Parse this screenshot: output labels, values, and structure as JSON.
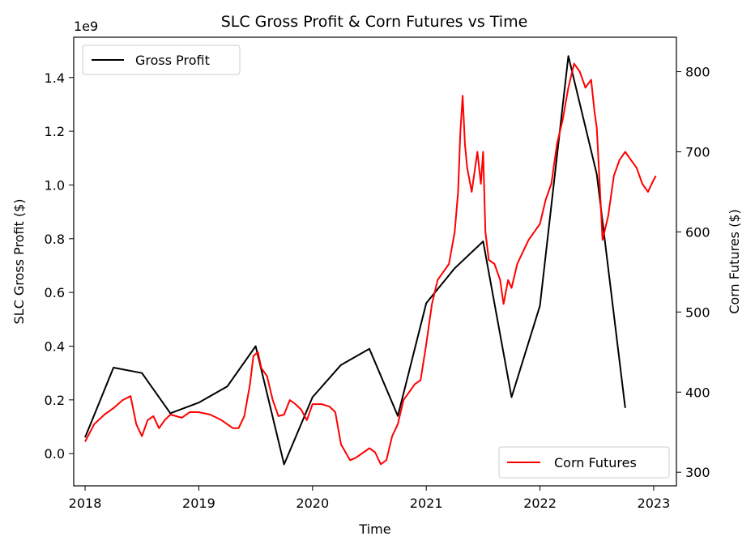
{
  "chart_data": {
    "type": "line",
    "title": "SLC Gross Profit & Corn Futures vs Time",
    "xlabel": "Time",
    "ylabel_left": "SLC Gross Profit ($)",
    "ylabel_right": "Corn Futures ($)",
    "left_axis_scale_label": "1e9",
    "xlim": [
      2017.9,
      2023.2
    ],
    "ylim_left": [
      -0.12,
      1.55
    ],
    "ylim_right": [
      283,
      843
    ],
    "x_ticks": [
      2018,
      2019,
      2020,
      2021,
      2022,
      2023
    ],
    "x_tick_labels": [
      "2018",
      "2019",
      "2020",
      "2021",
      "2022",
      "2023"
    ],
    "y_left_ticks": [
      0.0,
      0.2,
      0.4,
      0.6,
      0.8,
      1.0,
      1.2,
      1.4
    ],
    "y_left_tick_labels": [
      "0.0",
      "0.2",
      "0.4",
      "0.6",
      "0.8",
      "1.0",
      "1.2",
      "1.4"
    ],
    "y_right_ticks": [
      300,
      400,
      500,
      600,
      700,
      800
    ],
    "y_right_tick_labels": [
      "300",
      "400",
      "500",
      "600",
      "700",
      "800"
    ],
    "legend_left": {
      "label": "Gross Profit",
      "placement": "upper-left"
    },
    "legend_right": {
      "label": "Corn Futures",
      "placement": "lower-right"
    },
    "series": [
      {
        "name": "Gross Profit",
        "axis": "left",
        "color": "#000000",
        "points": [
          [
            2018.0,
            0.06
          ],
          [
            2018.25,
            0.32
          ],
          [
            2018.5,
            0.3
          ],
          [
            2018.75,
            0.15
          ],
          [
            2019.0,
            0.19
          ],
          [
            2019.25,
            0.25
          ],
          [
            2019.5,
            0.4
          ],
          [
            2019.75,
            -0.04
          ],
          [
            2020.0,
            0.21
          ],
          [
            2020.25,
            0.33
          ],
          [
            2020.5,
            0.39
          ],
          [
            2020.75,
            0.14
          ],
          [
            2021.0,
            0.56
          ],
          [
            2021.25,
            0.69
          ],
          [
            2021.5,
            0.79
          ],
          [
            2021.75,
            0.21
          ],
          [
            2022.0,
            0.55
          ],
          [
            2022.25,
            1.48
          ],
          [
            2022.5,
            1.04
          ],
          [
            2022.75,
            0.17
          ]
        ]
      },
      {
        "name": "Corn Futures",
        "axis": "right",
        "color": "#ff0000",
        "points": [
          [
            2018.0,
            338
          ],
          [
            2018.08,
            360
          ],
          [
            2018.17,
            372
          ],
          [
            2018.25,
            380
          ],
          [
            2018.33,
            390
          ],
          [
            2018.4,
            395
          ],
          [
            2018.45,
            360
          ],
          [
            2018.5,
            345
          ],
          [
            2018.55,
            365
          ],
          [
            2018.6,
            370
          ],
          [
            2018.65,
            355
          ],
          [
            2018.7,
            365
          ],
          [
            2018.75,
            372
          ],
          [
            2018.85,
            368
          ],
          [
            2018.92,
            375
          ],
          [
            2019.0,
            375
          ],
          [
            2019.1,
            372
          ],
          [
            2019.2,
            365
          ],
          [
            2019.3,
            355
          ],
          [
            2019.35,
            355
          ],
          [
            2019.4,
            370
          ],
          [
            2019.45,
            410
          ],
          [
            2019.48,
            445
          ],
          [
            2019.52,
            450
          ],
          [
            2019.55,
            430
          ],
          [
            2019.6,
            420
          ],
          [
            2019.65,
            390
          ],
          [
            2019.7,
            370
          ],
          [
            2019.75,
            372
          ],
          [
            2019.8,
            390
          ],
          [
            2019.85,
            385
          ],
          [
            2019.9,
            378
          ],
          [
            2019.95,
            365
          ],
          [
            2020.0,
            385
          ],
          [
            2020.08,
            385
          ],
          [
            2020.15,
            382
          ],
          [
            2020.2,
            375
          ],
          [
            2020.25,
            335
          ],
          [
            2020.33,
            315
          ],
          [
            2020.38,
            318
          ],
          [
            2020.45,
            325
          ],
          [
            2020.5,
            330
          ],
          [
            2020.55,
            325
          ],
          [
            2020.6,
            310
          ],
          [
            2020.65,
            315
          ],
          [
            2020.7,
            345
          ],
          [
            2020.75,
            360
          ],
          [
            2020.8,
            390
          ],
          [
            2020.85,
            400
          ],
          [
            2020.9,
            410
          ],
          [
            2020.95,
            415
          ],
          [
            2021.0,
            460
          ],
          [
            2021.05,
            510
          ],
          [
            2021.1,
            540
          ],
          [
            2021.15,
            550
          ],
          [
            2021.2,
            560
          ],
          [
            2021.25,
            600
          ],
          [
            2021.28,
            650
          ],
          [
            2021.3,
            725
          ],
          [
            2021.32,
            770
          ],
          [
            2021.34,
            710
          ],
          [
            2021.36,
            680
          ],
          [
            2021.4,
            650
          ],
          [
            2021.45,
            700
          ],
          [
            2021.48,
            660
          ],
          [
            2021.5,
            700
          ],
          [
            2021.52,
            600
          ],
          [
            2021.55,
            565
          ],
          [
            2021.6,
            560
          ],
          [
            2021.65,
            540
          ],
          [
            2021.68,
            510
          ],
          [
            2021.72,
            540
          ],
          [
            2021.75,
            530
          ],
          [
            2021.8,
            560
          ],
          [
            2021.85,
            575
          ],
          [
            2021.9,
            590
          ],
          [
            2021.95,
            600
          ],
          [
            2022.0,
            610
          ],
          [
            2022.05,
            640
          ],
          [
            2022.1,
            660
          ],
          [
            2022.15,
            710
          ],
          [
            2022.2,
            740
          ],
          [
            2022.25,
            780
          ],
          [
            2022.3,
            810
          ],
          [
            2022.35,
            800
          ],
          [
            2022.4,
            780
          ],
          [
            2022.45,
            790
          ],
          [
            2022.48,
            750
          ],
          [
            2022.5,
            730
          ],
          [
            2022.55,
            590
          ],
          [
            2022.6,
            620
          ],
          [
            2022.65,
            670
          ],
          [
            2022.7,
            690
          ],
          [
            2022.75,
            700
          ],
          [
            2022.8,
            690
          ],
          [
            2022.85,
            680
          ],
          [
            2022.9,
            660
          ],
          [
            2022.95,
            650
          ],
          [
            2023.0,
            665
          ],
          [
            2023.02,
            670
          ]
        ]
      }
    ]
  }
}
